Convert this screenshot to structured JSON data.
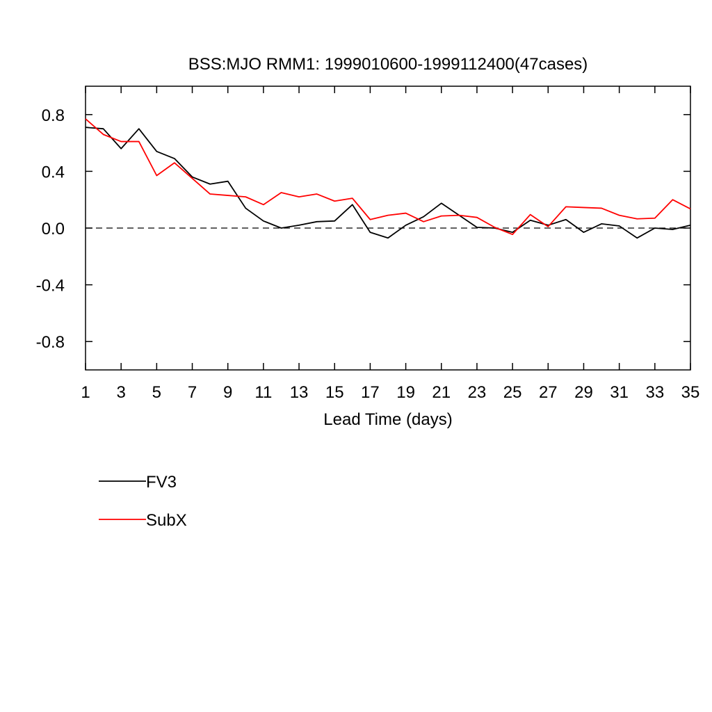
{
  "chart_data": {
    "type": "line",
    "title": "BSS:MJO RMM1: 1999010600-1999112400(47cases)",
    "xlabel": "Lead Time (days)",
    "ylabel": "",
    "xlim": [
      1,
      35
    ],
    "ylim": [
      -1.0,
      1.0
    ],
    "xticks": [
      1,
      3,
      5,
      7,
      9,
      11,
      13,
      15,
      17,
      19,
      21,
      23,
      25,
      27,
      29,
      31,
      33,
      35
    ],
    "yticks": [
      -0.8,
      -0.4,
      0.0,
      0.4,
      0.8
    ],
    "ytick_labels": [
      "-0.8",
      "-0.4",
      "0.0",
      "0.4",
      "0.8"
    ],
    "reference_line": {
      "y": 0.0,
      "style": "dashed"
    },
    "grid": false,
    "legend_placement": "below",
    "x": [
      1,
      2,
      3,
      4,
      5,
      6,
      7,
      8,
      9,
      10,
      11,
      12,
      13,
      14,
      15,
      16,
      17,
      18,
      19,
      20,
      21,
      22,
      23,
      24,
      25,
      26,
      27,
      28,
      29,
      30,
      31,
      32,
      33,
      34,
      35
    ],
    "series": [
      {
        "name": "FV3",
        "color": "#000000",
        "values": [
          0.71,
          0.7,
          0.56,
          0.7,
          0.54,
          0.49,
          0.36,
          0.31,
          0.33,
          0.14,
          0.05,
          0.0,
          0.02,
          0.045,
          0.05,
          0.165,
          -0.03,
          -0.07,
          0.02,
          0.08,
          0.175,
          0.09,
          0.005,
          0.0,
          -0.03,
          0.055,
          0.02,
          0.06,
          -0.03,
          0.03,
          0.015,
          -0.07,
          0.0,
          -0.01,
          0.02
        ]
      },
      {
        "name": "SubX",
        "color": "#ff0000",
        "values": [
          0.77,
          0.66,
          0.61,
          0.61,
          0.37,
          0.46,
          0.35,
          0.24,
          0.23,
          0.22,
          0.165,
          0.25,
          0.22,
          0.24,
          0.19,
          0.21,
          0.06,
          0.09,
          0.105,
          0.045,
          0.085,
          0.09,
          0.075,
          0.005,
          -0.045,
          0.095,
          0.01,
          0.15,
          0.145,
          0.14,
          0.09,
          0.065,
          0.07,
          0.2,
          0.135
        ]
      }
    ]
  }
}
